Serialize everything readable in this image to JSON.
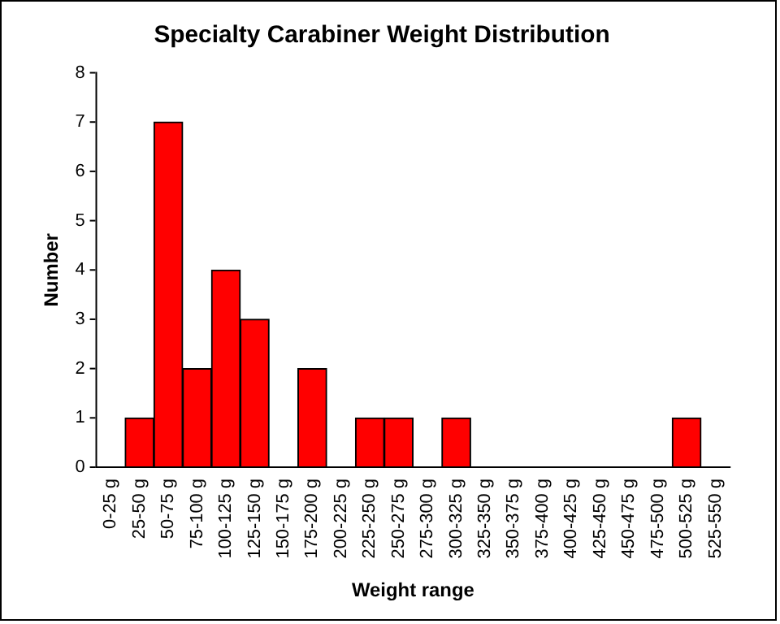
{
  "chart_data": {
    "type": "bar",
    "title": "Specialty Carabiner Weight Distribution",
    "xlabel": "Weight range",
    "ylabel": "Number",
    "categories": [
      "0-25 g",
      "25-50 g",
      "50-75 g",
      "75-100 g",
      "100-125 g",
      "125-150 g",
      "150-175 g",
      "175-200 g",
      "200-225 g",
      "225-250 g",
      "250-275 g",
      "275-300 g",
      "300-325 g",
      "325-350 g",
      "350-375 g",
      "375-400 g",
      "400-425 g",
      "425-450 g",
      "450-475 g",
      "475-500 g",
      "500-525 g",
      "525-550 g"
    ],
    "values": [
      0,
      1,
      7,
      2,
      4,
      3,
      0,
      2,
      0,
      1,
      1,
      0,
      1,
      0,
      0,
      0,
      0,
      0,
      0,
      0,
      1,
      0
    ],
    "color": "#ff0000",
    "ylim": [
      0,
      8
    ],
    "yticks": [
      0,
      1,
      2,
      3,
      4,
      5,
      6,
      7,
      8
    ],
    "grid": false,
    "legend": false
  }
}
